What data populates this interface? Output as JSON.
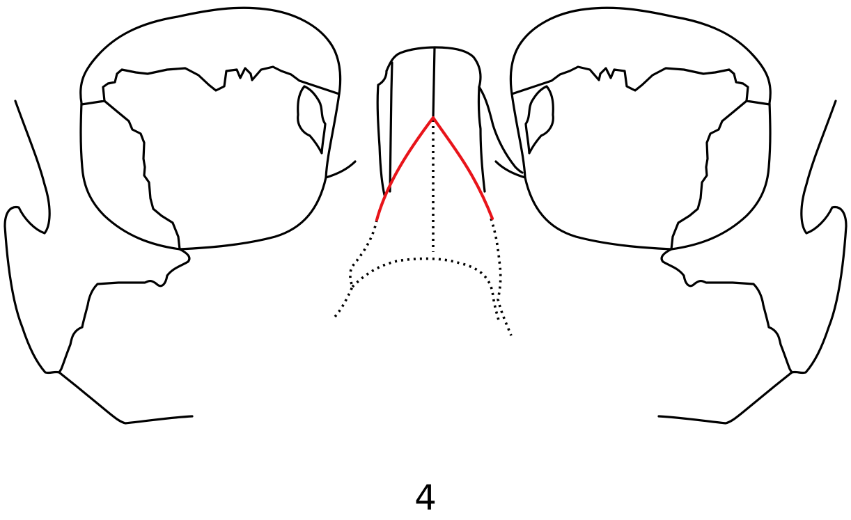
{
  "figure": {
    "label": "4",
    "colors": {
      "outline": "#000000",
      "highlight": "#e8141a"
    }
  }
}
